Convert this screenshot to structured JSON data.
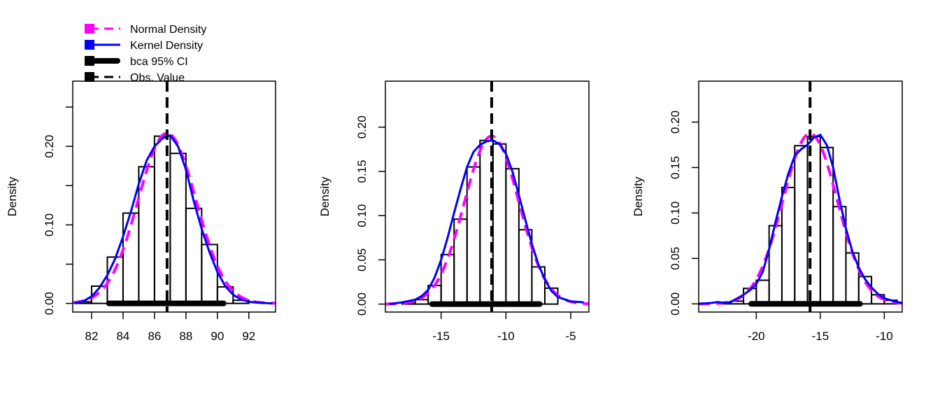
{
  "colors": {
    "normal": "#ff00ff",
    "kernel": "#0000ff",
    "ci": "#000000",
    "obs": "#000000",
    "bars": "#000000"
  },
  "legend": {
    "position": "top-left",
    "items": [
      {
        "label": "Normal Density",
        "color": "#ff00ff",
        "style": "dashed"
      },
      {
        "label": "Kernel Density",
        "color": "#0000ff",
        "style": "solid"
      },
      {
        "label": "bca 95% CI",
        "color": "#000000",
        "style": "thick"
      },
      {
        "label": "Obs. Value",
        "color": "#000000",
        "style": "dashed"
      }
    ]
  },
  "chart_data": [
    {
      "type": "bar",
      "ylabel": "Density",
      "xlim": [
        80.8,
        93.7
      ],
      "ylim": [
        -0.011,
        0.283
      ],
      "xticks": [
        82,
        84,
        86,
        88,
        90,
        92
      ],
      "xtick_labels": [
        "82",
        "84",
        "86",
        "88",
        "90",
        "92"
      ],
      "yticks": [
        0.0,
        0.05,
        0.1,
        0.15,
        0.2,
        0.25
      ],
      "ytick_labels": [
        "0.00",
        "",
        "0.10",
        "",
        "0.20",
        ""
      ],
      "bins": [
        81,
        82,
        83,
        84,
        85,
        86,
        87,
        88,
        89,
        90,
        91,
        92
      ],
      "densities": [
        0.002,
        0.022,
        0.059,
        0.115,
        0.174,
        0.213,
        0.191,
        0.121,
        0.075,
        0.021,
        0.004
      ],
      "normal": {
        "mean": 86.8,
        "sd": 1.84
      },
      "kernel": {
        "x": [
          80.9,
          81.5,
          82,
          82.5,
          83,
          83.5,
          84,
          84.5,
          85,
          85.5,
          86,
          86.5,
          87,
          87.5,
          88,
          88.5,
          89,
          89.5,
          90,
          90.5,
          91,
          91.5,
          92,
          92.5,
          93.5
        ],
        "y": [
          0.0,
          0.003,
          0.009,
          0.02,
          0.036,
          0.057,
          0.085,
          0.117,
          0.152,
          0.182,
          0.2,
          0.21,
          0.214,
          0.2,
          0.17,
          0.13,
          0.095,
          0.065,
          0.04,
          0.022,
          0.011,
          0.005,
          0.002,
          0.001,
          0.0
        ]
      },
      "ci": [
        83.1,
        90.4
      ],
      "obs": 86.8
    },
    {
      "type": "bar",
      "ylabel": "Density",
      "xlim": [
        -19.3,
        -3.6
      ],
      "ylim": [
        -0.009,
        0.252
      ],
      "xticks": [
        -15,
        -10,
        -5
      ],
      "xtick_labels": [
        "-15",
        "-10",
        "-5"
      ],
      "yticks": [
        0.0,
        0.05,
        0.1,
        0.15,
        0.2
      ],
      "ytick_labels": [
        "0.00",
        "0.05",
        "0.10",
        "0.15",
        "0.20"
      ],
      "bins": [
        -18,
        -17,
        -16,
        -15,
        -14,
        -13,
        -12,
        -11,
        -10,
        -9,
        -8,
        -7,
        -6
      ],
      "densities": [
        0.001,
        0.005,
        0.021,
        0.056,
        0.096,
        0.155,
        0.185,
        0.181,
        0.153,
        0.084,
        0.042,
        0.018
      ],
      "normal": {
        "mean": -11.1,
        "sd": 2.1
      },
      "kernel": {
        "x": [
          -19,
          -18,
          -17,
          -16.5,
          -16,
          -15.5,
          -15,
          -14.5,
          -14,
          -13.5,
          -13,
          -12.5,
          -12,
          -11.5,
          -11,
          -10.5,
          -10,
          -9.5,
          -9,
          -8.5,
          -8,
          -7.5,
          -7,
          -6.5,
          -6,
          -5,
          -4
        ],
        "y": [
          0.0,
          0.002,
          0.005,
          0.009,
          0.016,
          0.03,
          0.05,
          0.075,
          0.103,
          0.13,
          0.155,
          0.172,
          0.18,
          0.184,
          0.185,
          0.181,
          0.17,
          0.15,
          0.123,
          0.095,
          0.068,
          0.045,
          0.028,
          0.015,
          0.008,
          0.003,
          0.002
        ]
      },
      "ci": [
        -15.7,
        -7.4
      ],
      "obs": -11.1
    },
    {
      "type": "bar",
      "ylabel": "Density",
      "xlim": [
        -24.5,
        -8.6
      ],
      "ylim": [
        -0.009,
        0.245
      ],
      "xticks": [
        -20,
        -15,
        -10
      ],
      "xtick_labels": [
        "-20",
        "-15",
        "-10"
      ],
      "yticks": [
        0.0,
        0.05,
        0.1,
        0.15,
        0.2
      ],
      "ytick_labels": [
        "0.00",
        "0.05",
        "0.10",
        "0.15",
        "0.20"
      ],
      "bins": [
        -23,
        -22,
        -21,
        -20,
        -19,
        -18,
        -17,
        -16,
        -15,
        -14,
        -13,
        -12,
        -11,
        -10,
        -9
      ],
      "densities": [
        0.001,
        0.003,
        0.017,
        0.026,
        0.086,
        0.128,
        0.174,
        0.184,
        0.172,
        0.107,
        0.056,
        0.03,
        0.01,
        0.004
      ],
      "normal": {
        "mean": -15.8,
        "sd": 2.13
      },
      "kernel": {
        "x": [
          -24.5,
          -23.5,
          -23,
          -22.5,
          -22,
          -21.5,
          -21,
          -20.5,
          -20,
          -19.5,
          -19,
          -18.5,
          -18,
          -17.5,
          -17,
          -16.5,
          -16,
          -15.5,
          -15,
          -14.5,
          -14,
          -13.5,
          -13,
          -12.5,
          -12,
          -11.5,
          -11,
          -10.5,
          -10,
          -9,
          -8.6
        ],
        "y": [
          0.0,
          0.001,
          0.002,
          0.001,
          0.002,
          0.006,
          0.01,
          0.015,
          0.022,
          0.035,
          0.06,
          0.09,
          0.118,
          0.143,
          0.163,
          0.17,
          0.175,
          0.183,
          0.186,
          0.175,
          0.15,
          0.115,
          0.083,
          0.058,
          0.04,
          0.027,
          0.018,
          0.011,
          0.006,
          0.002,
          0.001
        ]
      },
      "ci": [
        -20.4,
        -11.9
      ],
      "obs": -15.8
    }
  ]
}
